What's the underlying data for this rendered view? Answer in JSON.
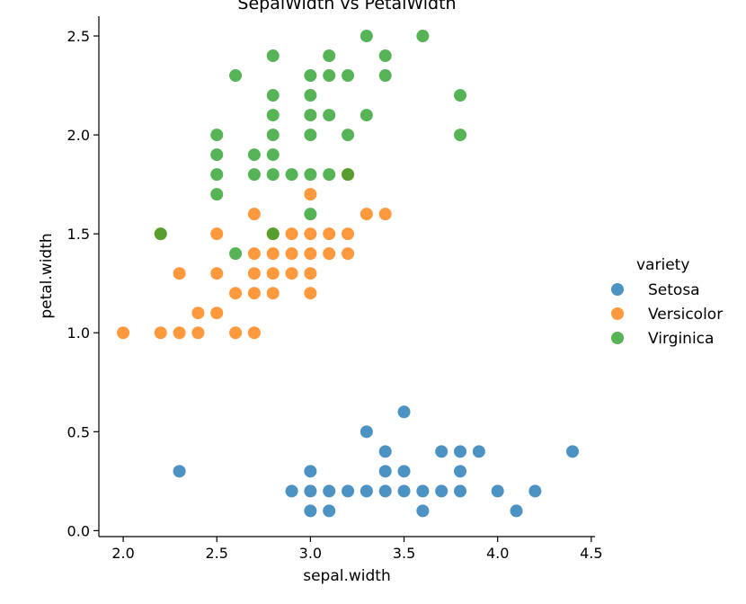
{
  "chart_data": {
    "type": "scatter",
    "title": "SepalWidth vs PetalWidth",
    "xlabel": "sepal.width",
    "ylabel": "petal.width",
    "xlim": [
      1.87,
      4.52
    ],
    "ylim": [
      -0.03,
      2.6
    ],
    "x_ticks": [
      2.0,
      2.5,
      3.0,
      3.5,
      4.0,
      4.5
    ],
    "x_tick_labels": [
      "2.0",
      "2.5",
      "3.0",
      "3.5",
      "4.0",
      "4.5"
    ],
    "y_ticks": [
      0.0,
      0.5,
      1.0,
      1.5,
      2.0,
      2.5
    ],
    "y_tick_labels": [
      "0.0",
      "0.5",
      "1.0",
      "1.5",
      "2.0",
      "2.5"
    ],
    "grid": false,
    "legend": {
      "title": "variety",
      "placement": "right",
      "entries": [
        "Setosa",
        "Versicolor",
        "Virginica"
      ]
    },
    "series": [
      {
        "name": "Setosa",
        "color": "#1f77b4",
        "points": [
          [
            2.3,
            0.3
          ],
          [
            2.9,
            0.2
          ],
          [
            3.0,
            0.1
          ],
          [
            3.0,
            0.2
          ],
          [
            3.0,
            0.3
          ],
          [
            3.1,
            0.1
          ],
          [
            3.1,
            0.2
          ],
          [
            3.2,
            0.2
          ],
          [
            3.3,
            0.2
          ],
          [
            3.3,
            0.5
          ],
          [
            3.4,
            0.2
          ],
          [
            3.4,
            0.3
          ],
          [
            3.4,
            0.4
          ],
          [
            3.5,
            0.2
          ],
          [
            3.5,
            0.3
          ],
          [
            3.5,
            0.6
          ],
          [
            3.6,
            0.1
          ],
          [
            3.6,
            0.2
          ],
          [
            3.7,
            0.2
          ],
          [
            3.7,
            0.4
          ],
          [
            3.8,
            0.2
          ],
          [
            3.8,
            0.3
          ],
          [
            3.8,
            0.4
          ],
          [
            3.9,
            0.4
          ],
          [
            4.0,
            0.2
          ],
          [
            4.1,
            0.1
          ],
          [
            4.2,
            0.2
          ],
          [
            4.4,
            0.4
          ]
        ]
      },
      {
        "name": "Versicolor",
        "color": "#ff7f0e",
        "points": [
          [
            2.0,
            1.0
          ],
          [
            2.2,
            1.0
          ],
          [
            2.2,
            1.5
          ],
          [
            2.3,
            1.0
          ],
          [
            2.3,
            1.3
          ],
          [
            2.4,
            1.0
          ],
          [
            2.4,
            1.1
          ],
          [
            2.5,
            1.1
          ],
          [
            2.5,
            1.3
          ],
          [
            2.5,
            1.5
          ],
          [
            2.6,
            1.0
          ],
          [
            2.6,
            1.2
          ],
          [
            2.7,
            1.0
          ],
          [
            2.7,
            1.2
          ],
          [
            2.7,
            1.3
          ],
          [
            2.7,
            1.4
          ],
          [
            2.7,
            1.6
          ],
          [
            2.8,
            1.2
          ],
          [
            2.8,
            1.3
          ],
          [
            2.8,
            1.4
          ],
          [
            2.8,
            1.5
          ],
          [
            2.9,
            1.3
          ],
          [
            2.9,
            1.4
          ],
          [
            2.9,
            1.5
          ],
          [
            3.0,
            1.2
          ],
          [
            3.0,
            1.3
          ],
          [
            3.0,
            1.4
          ],
          [
            3.0,
            1.5
          ],
          [
            3.0,
            1.7
          ],
          [
            3.1,
            1.4
          ],
          [
            3.1,
            1.5
          ],
          [
            3.2,
            1.4
          ],
          [
            3.2,
            1.5
          ],
          [
            3.2,
            1.8
          ],
          [
            3.3,
            1.6
          ],
          [
            3.4,
            1.6
          ]
        ]
      },
      {
        "name": "Virginica",
        "color": "#2ca02c",
        "points": [
          [
            2.2,
            1.5
          ],
          [
            2.5,
            1.7
          ],
          [
            2.5,
            1.8
          ],
          [
            2.5,
            1.9
          ],
          [
            2.5,
            2.0
          ],
          [
            2.6,
            1.4
          ],
          [
            2.6,
            2.3
          ],
          [
            2.7,
            1.8
          ],
          [
            2.7,
            1.9
          ],
          [
            2.8,
            1.5
          ],
          [
            2.8,
            1.8
          ],
          [
            2.8,
            1.9
          ],
          [
            2.8,
            2.0
          ],
          [
            2.8,
            2.1
          ],
          [
            2.8,
            2.2
          ],
          [
            2.8,
            2.4
          ],
          [
            2.9,
            1.8
          ],
          [
            3.0,
            1.6
          ],
          [
            3.0,
            1.8
          ],
          [
            3.0,
            2.0
          ],
          [
            3.0,
            2.1
          ],
          [
            3.0,
            2.2
          ],
          [
            3.0,
            2.3
          ],
          [
            3.1,
            1.8
          ],
          [
            3.1,
            2.1
          ],
          [
            3.1,
            2.3
          ],
          [
            3.1,
            2.4
          ],
          [
            3.2,
            1.8
          ],
          [
            3.2,
            2.0
          ],
          [
            3.2,
            2.3
          ],
          [
            3.3,
            2.1
          ],
          [
            3.3,
            2.5
          ],
          [
            3.4,
            2.3
          ],
          [
            3.4,
            2.4
          ],
          [
            3.6,
            2.5
          ],
          [
            3.8,
            2.0
          ],
          [
            3.8,
            2.2
          ]
        ]
      }
    ]
  }
}
